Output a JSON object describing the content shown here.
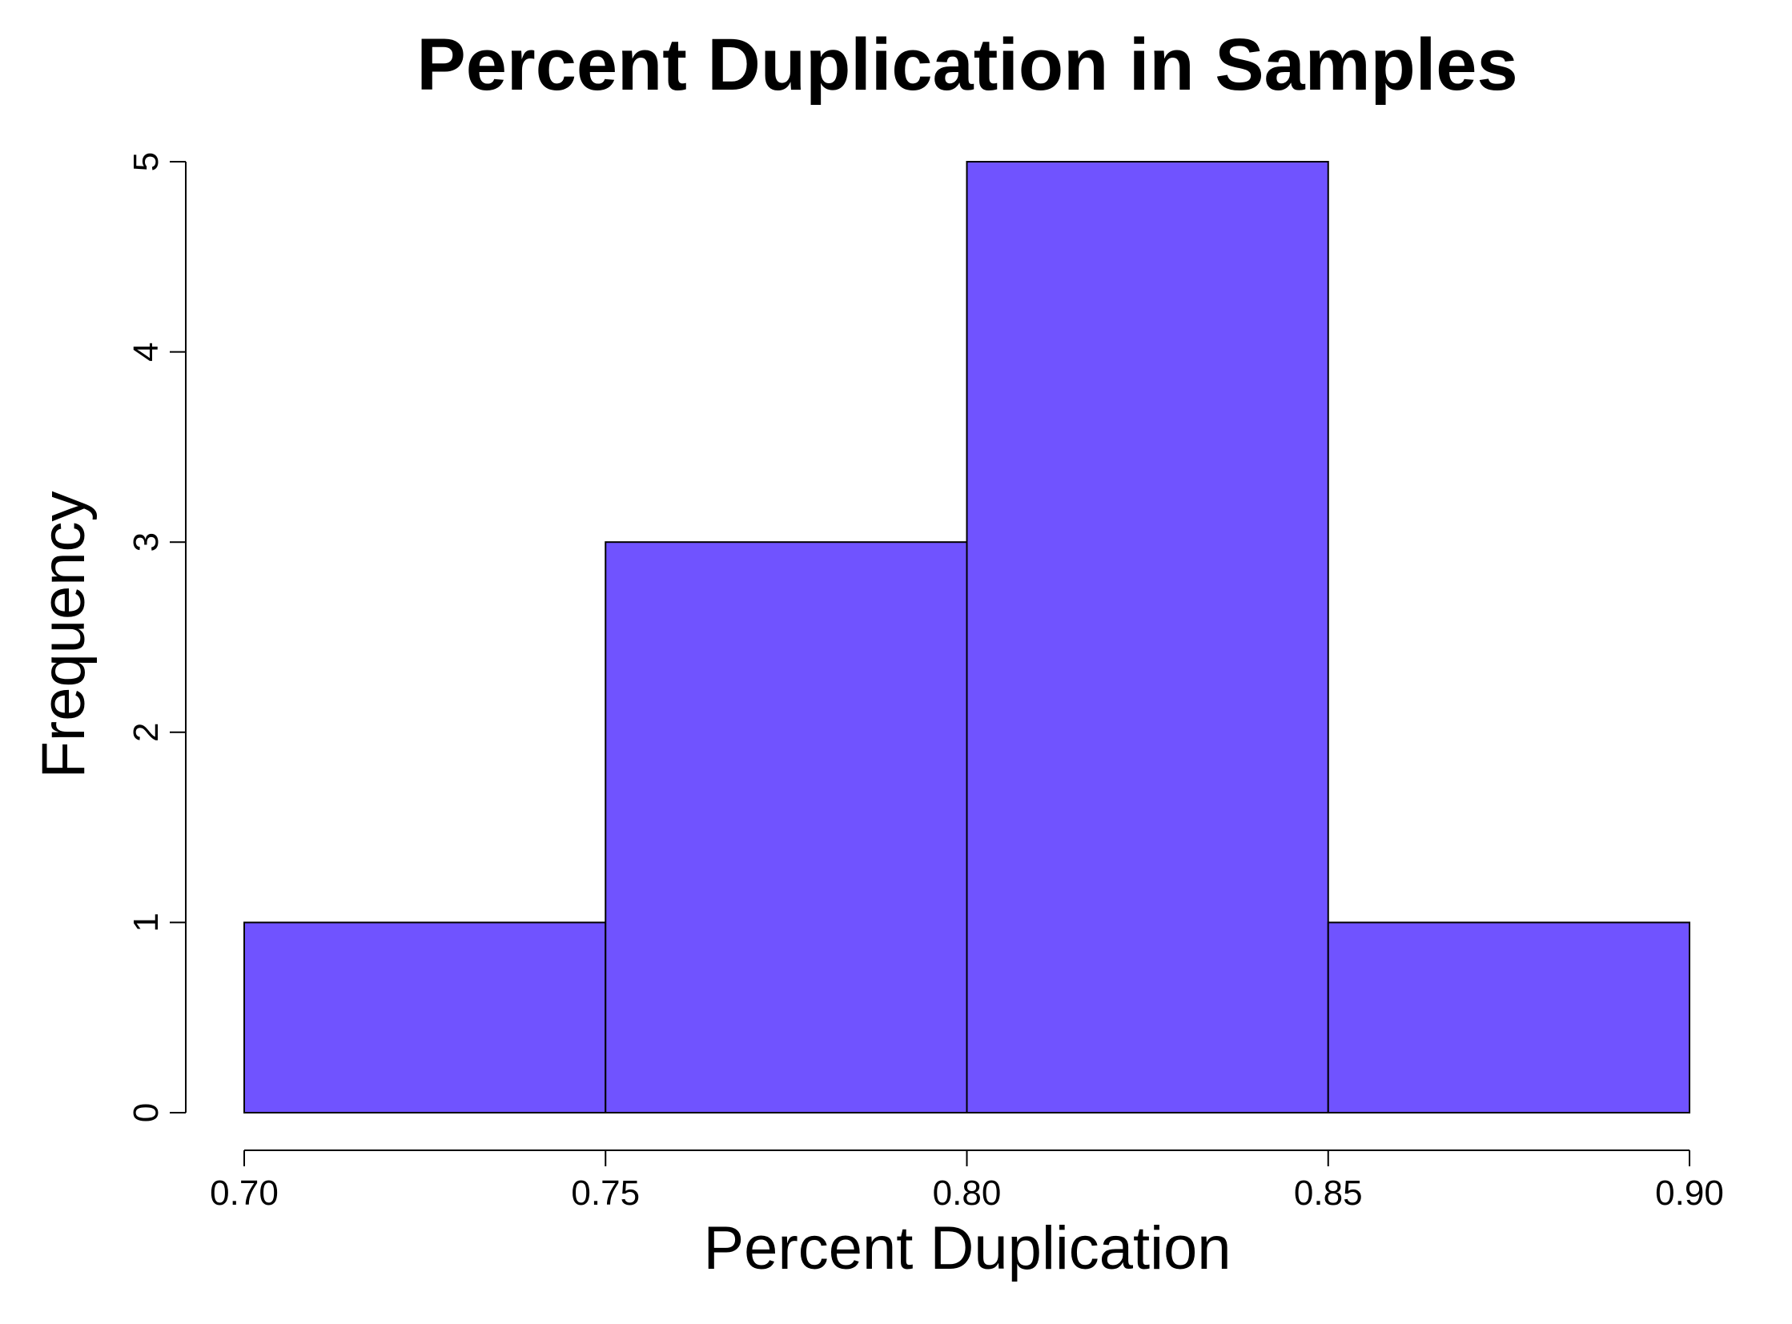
{
  "chart_data": {
    "type": "bar",
    "title": "Percent Duplication in Samples",
    "xlabel": "Percent Duplication",
    "ylabel": "Frequency",
    "bins": [
      {
        "start": 0.7,
        "end": 0.75,
        "count": 1
      },
      {
        "start": 0.75,
        "end": 0.8,
        "count": 3
      },
      {
        "start": 0.8,
        "end": 0.85,
        "count": 5
      },
      {
        "start": 0.85,
        "end": 0.9,
        "count": 1
      }
    ],
    "xlim": [
      0.7,
      0.9
    ],
    "ylim": [
      0,
      5
    ],
    "x_ticks": [
      "0.70",
      "0.75",
      "0.80",
      "0.85",
      "0.90"
    ],
    "y_ticks": [
      "0",
      "1",
      "2",
      "3",
      "4",
      "5"
    ],
    "bar_color": "#7053ff",
    "grid": false,
    "legend": "none"
  }
}
